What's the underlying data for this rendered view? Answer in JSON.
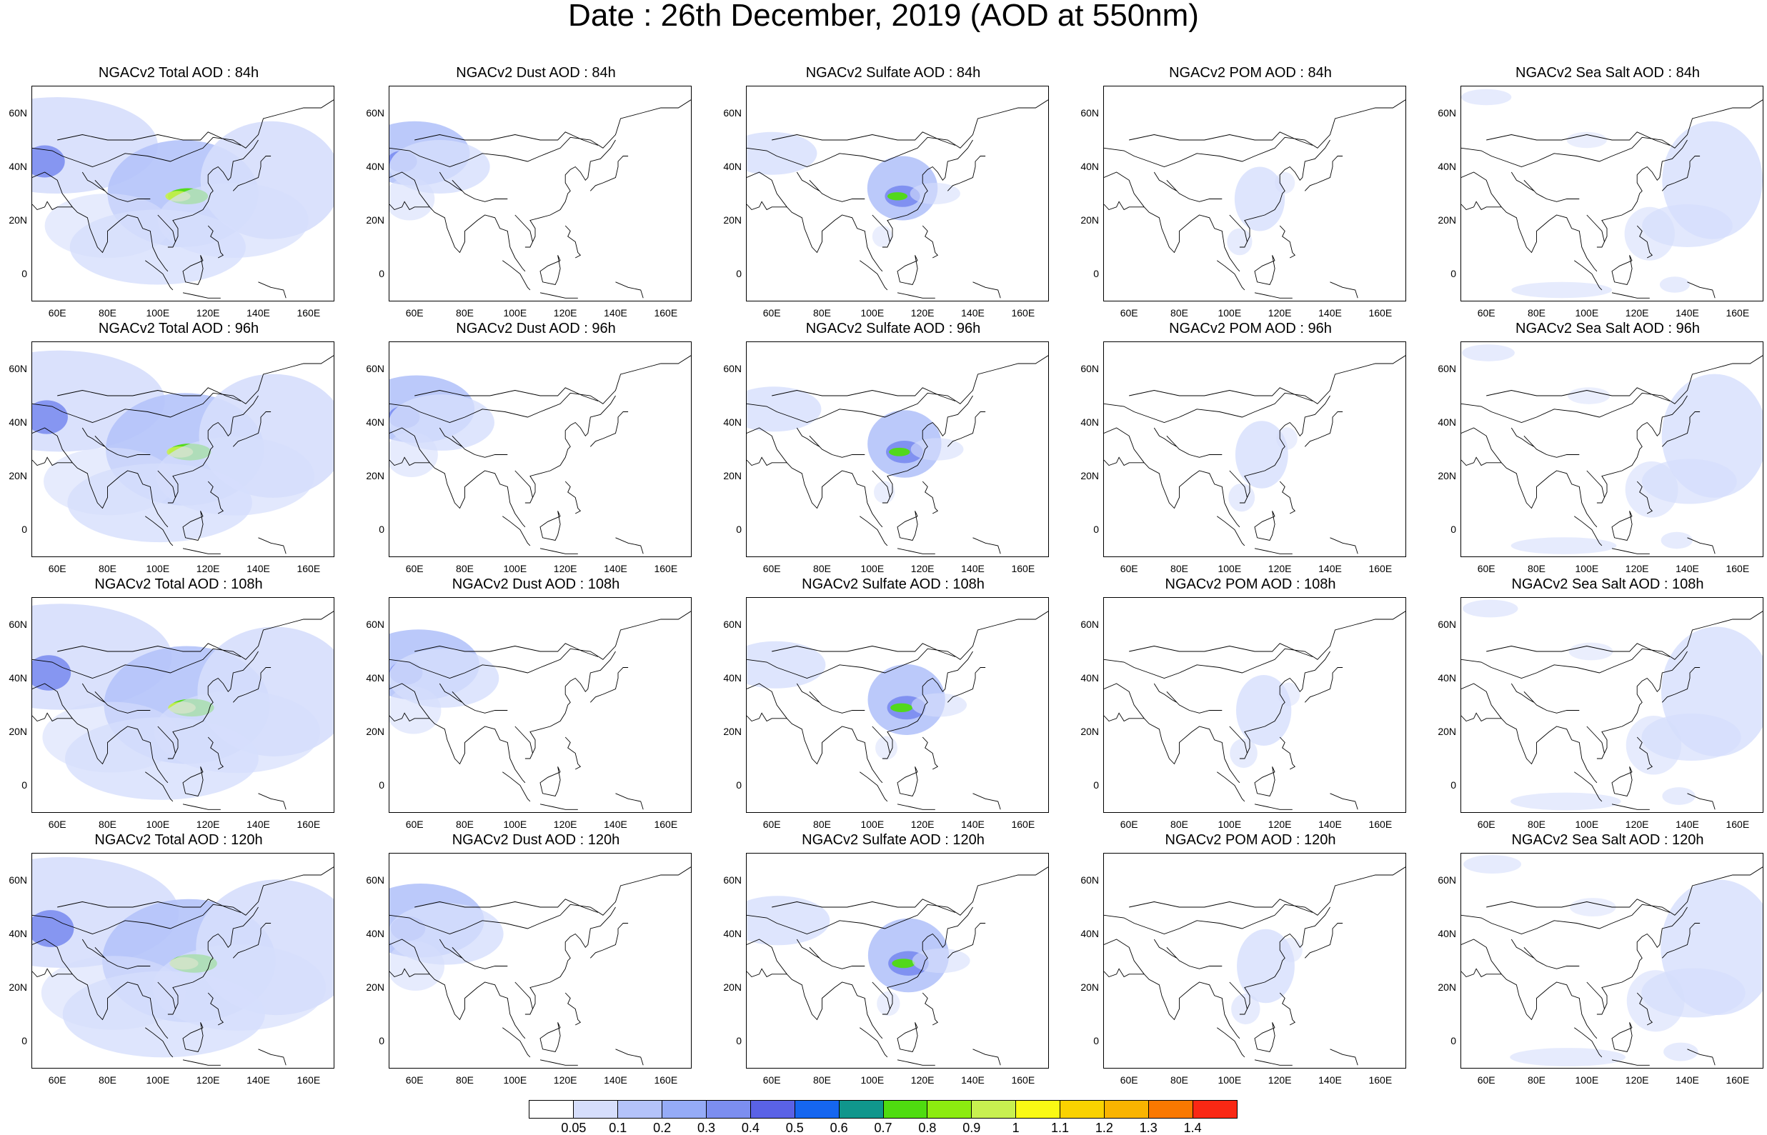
{
  "title": "Date : 26th December, 2019 (AOD at 550nm)",
  "y_tick_labels": [
    "60N",
    "40N",
    "20N",
    "0"
  ],
  "x_tick_labels": [
    "60E",
    "80E",
    "100E",
    "120E",
    "140E",
    "160E"
  ],
  "panels": [
    {
      "title": "NGACv2 Total AOD : 84h",
      "species": "total",
      "lead_hours": 84
    },
    {
      "title": "NGACv2 Dust AOD : 84h",
      "species": "dust",
      "lead_hours": 84
    },
    {
      "title": "NGACv2 Sulfate AOD : 84h",
      "species": "sulfate",
      "lead_hours": 84
    },
    {
      "title": "NGACv2 POM AOD : 84h",
      "species": "pom",
      "lead_hours": 84
    },
    {
      "title": "NGACv2 Sea Salt AOD : 84h",
      "species": "seasalt",
      "lead_hours": 84
    },
    {
      "title": "NGACv2 Total AOD : 96h",
      "species": "total",
      "lead_hours": 96
    },
    {
      "title": "NGACv2 Dust AOD : 96h",
      "species": "dust",
      "lead_hours": 96
    },
    {
      "title": "NGACv2 Sulfate AOD : 96h",
      "species": "sulfate",
      "lead_hours": 96
    },
    {
      "title": "NGACv2 POM AOD : 96h",
      "species": "pom",
      "lead_hours": 96
    },
    {
      "title": "NGACv2 Sea Salt AOD : 96h",
      "species": "seasalt",
      "lead_hours": 96
    },
    {
      "title": "NGACv2 Total AOD : 108h",
      "species": "total",
      "lead_hours": 108
    },
    {
      "title": "NGACv2 Dust AOD : 108h",
      "species": "dust",
      "lead_hours": 108
    },
    {
      "title": "NGACv2 Sulfate AOD : 108h",
      "species": "sulfate",
      "lead_hours": 108
    },
    {
      "title": "NGACv2 POM AOD : 108h",
      "species": "pom",
      "lead_hours": 108
    },
    {
      "title": "NGACv2 Sea Salt AOD : 108h",
      "species": "seasalt",
      "lead_hours": 108
    },
    {
      "title": "NGACv2 Total AOD : 120h",
      "species": "total",
      "lead_hours": 120
    },
    {
      "title": "NGACv2 Dust AOD : 120h",
      "species": "dust",
      "lead_hours": 120
    },
    {
      "title": "NGACv2 Sulfate AOD : 120h",
      "species": "sulfate",
      "lead_hours": 120
    },
    {
      "title": "NGACv2 POM AOD : 120h",
      "species": "pom",
      "lead_hours": 120
    },
    {
      "title": "NGACv2 Sea Salt  AOD : 120h",
      "species": "seasalt",
      "lead_hours": 120
    }
  ],
  "colorbar": {
    "labels": [
      "0.05",
      "0.1",
      "0.2",
      "0.3",
      "0.4",
      "0.5",
      "0.6",
      "0.7",
      "0.8",
      "0.9",
      "1",
      "1.1",
      "1.2",
      "1.3",
      "1.4"
    ],
    "colors": [
      "#ffffff",
      "#d6defc",
      "#b4c3fa",
      "#95abf7",
      "#7c8ef0",
      "#5a62e6",
      "#1566f0",
      "#10968c",
      "#4fdc10",
      "#8ceb10",
      "#c8f050",
      "#fafa14",
      "#fad200",
      "#fab400",
      "#fa7800",
      "#fa2814"
    ]
  },
  "palette": {
    "coast": "#000000",
    "light": "#d6defc",
    "mid": "#b4c3fa",
    "strong": "#7c8ef0"
  }
}
